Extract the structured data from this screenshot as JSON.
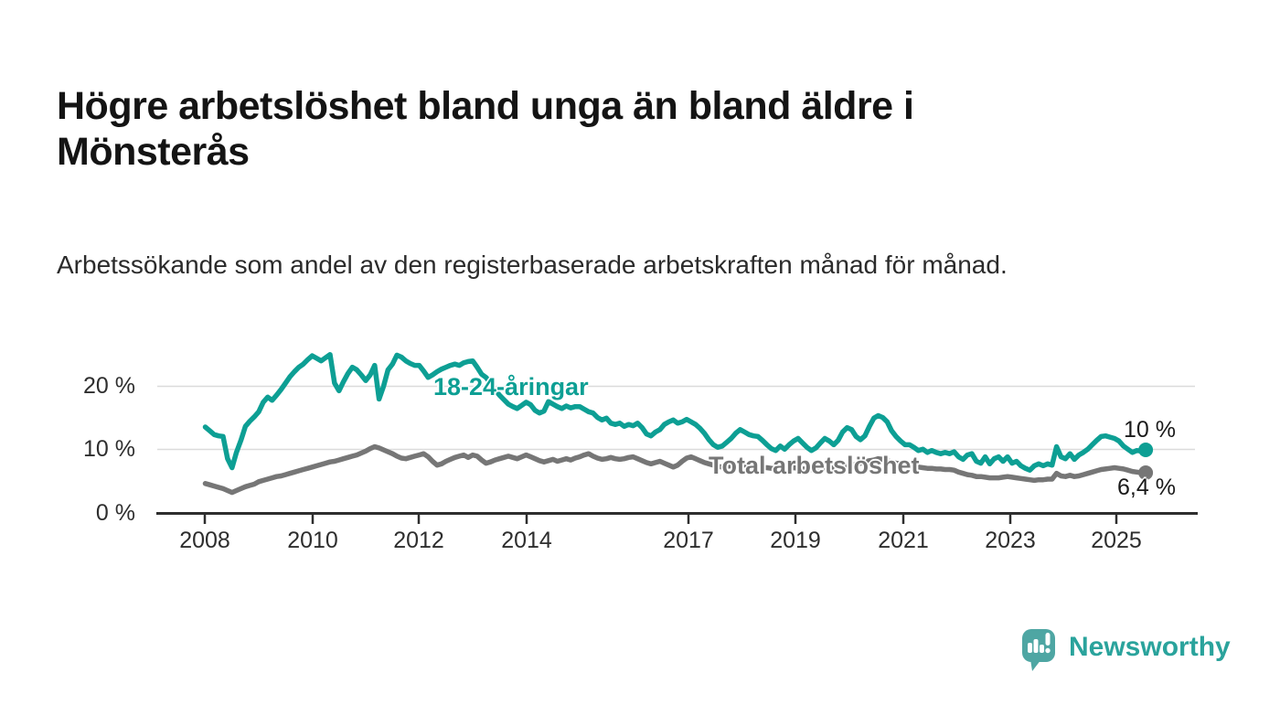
{
  "page": {
    "title": "Högre arbetslöshet bland unga än bland äldre i Mönsterås",
    "subtitle": "Arbetssökande som andel av den registerbaserade arbetskraften månad för månad."
  },
  "branding": {
    "logo_text": "Newsworthy",
    "logo_icon": "bar-chart-speech-bubble",
    "logo_icon_color": "#4ea6a3",
    "logo_text_color": "#2aa39c"
  },
  "chart_data": {
    "type": "line",
    "title": "Högre arbetslöshet bland unga än bland äldre i Mönsterås",
    "subtitle": "Arbetssökande som andel av den registerbaserade arbetskraften månad för månad.",
    "unit": "%",
    "grid": "horizontal",
    "x_interval": "monthly",
    "x_start_year": 2008,
    "x_end": "2025-08",
    "ylim": [
      0,
      27
    ],
    "yticks": [
      {
        "value": 20,
        "label": "20 %"
      },
      {
        "value": 10,
        "label": "10 %"
      },
      {
        "value": 0,
        "label": "0 %"
      }
    ],
    "xticks": [
      "2008",
      "2010",
      "2012",
      "2014",
      "2017",
      "2019",
      "2021",
      "2023",
      "2025"
    ],
    "series": [
      {
        "name": "18-24-åringar",
        "color": "#0d9f94",
        "end_label": "10 %",
        "last_value": 10.0,
        "values": [
          13.6,
          13.0,
          12.4,
          12.2,
          12.1,
          8.6,
          7.2,
          9.6,
          11.5,
          13.7,
          14.5,
          15.2,
          16.0,
          17.5,
          18.3,
          17.8,
          18.6,
          19.5,
          20.5,
          21.5,
          22.3,
          23.0,
          23.5,
          24.2,
          24.8,
          24.4,
          24.0,
          24.5,
          25.0,
          20.5,
          19.3,
          20.7,
          22.0,
          23.0,
          22.6,
          21.8,
          20.9,
          21.8,
          23.3,
          18.0,
          20.0,
          22.6,
          23.5,
          24.9,
          24.6,
          24.0,
          23.6,
          23.3,
          23.3,
          22.4,
          21.4,
          21.8,
          22.3,
          22.7,
          23.0,
          23.3,
          23.5,
          23.3,
          23.7,
          23.9,
          24.0,
          23.0,
          21.9,
          21.4,
          20.5,
          19.5,
          18.6,
          17.9,
          17.2,
          16.8,
          16.5,
          17.0,
          17.5,
          17.1,
          16.2,
          15.8,
          16.1,
          17.6,
          17.2,
          16.8,
          16.5,
          16.9,
          16.6,
          16.8,
          16.8,
          16.4,
          16.0,
          15.8,
          15.1,
          14.7,
          15.0,
          14.2,
          14.0,
          14.2,
          13.7,
          14.0,
          13.8,
          14.2,
          13.5,
          12.5,
          12.2,
          12.8,
          13.2,
          14.0,
          14.4,
          14.7,
          14.2,
          14.4,
          14.8,
          14.4,
          14.0,
          13.4,
          12.6,
          11.6,
          10.8,
          10.4,
          10.6,
          11.2,
          11.8,
          12.6,
          13.2,
          12.8,
          12.4,
          12.2,
          12.1,
          11.5,
          10.8,
          10.2,
          9.9,
          10.6,
          10.1,
          10.8,
          11.4,
          11.8,
          11.1,
          10.4,
          9.9,
          10.3,
          11.1,
          11.8,
          11.4,
          10.8,
          11.5,
          12.8,
          13.5,
          13.2,
          12.1,
          11.6,
          12.2,
          13.7,
          15.0,
          15.4,
          15.1,
          14.4,
          13.0,
          12.1,
          11.4,
          10.8,
          10.8,
          10.4,
          9.9,
          10.1,
          9.6,
          9.9,
          9.6,
          9.4,
          9.6,
          9.4,
          9.7,
          8.9,
          8.5,
          9.2,
          9.4,
          8.2,
          7.9,
          8.9,
          7.8,
          8.6,
          8.9,
          8.2,
          8.9,
          7.9,
          8.2,
          7.5,
          7.1,
          6.8,
          7.5,
          7.8,
          7.5,
          7.8,
          7.6,
          10.5,
          8.9,
          8.6,
          9.4,
          8.5,
          9.2,
          9.6,
          10.1,
          10.8,
          11.5,
          12.1,
          12.2,
          12.0,
          11.8,
          11.4,
          10.6,
          10.1,
          9.6,
          9.9,
          9.8,
          10.0
        ]
      },
      {
        "name": "Total arbetslöshet",
        "color": "#767676",
        "end_label": "6,4 %",
        "last_value": 6.4,
        "values": [
          4.7,
          4.5,
          4.3,
          4.1,
          3.9,
          3.6,
          3.3,
          3.6,
          3.9,
          4.2,
          4.4,
          4.6,
          5.0,
          5.2,
          5.4,
          5.6,
          5.8,
          5.9,
          6.1,
          6.3,
          6.5,
          6.7,
          6.9,
          7.1,
          7.3,
          7.5,
          7.7,
          7.9,
          8.1,
          8.2,
          8.4,
          8.6,
          8.8,
          9.0,
          9.2,
          9.5,
          9.8,
          10.2,
          10.5,
          10.3,
          10.0,
          9.7,
          9.4,
          9.0,
          8.7,
          8.6,
          8.8,
          9.0,
          9.2,
          9.4,
          8.9,
          8.2,
          7.6,
          7.8,
          8.2,
          8.5,
          8.8,
          9.0,
          9.2,
          8.8,
          9.2,
          9.0,
          8.4,
          7.9,
          8.1,
          8.4,
          8.6,
          8.8,
          9.0,
          8.8,
          8.6,
          8.9,
          9.2,
          8.9,
          8.6,
          8.3,
          8.1,
          8.3,
          8.5,
          8.2,
          8.4,
          8.6,
          8.4,
          8.7,
          8.9,
          9.2,
          9.4,
          9.0,
          8.7,
          8.5,
          8.6,
          8.8,
          8.6,
          8.5,
          8.6,
          8.8,
          8.9,
          8.6,
          8.3,
          8.0,
          7.8,
          8.0,
          8.2,
          7.9,
          7.6,
          7.3,
          7.6,
          8.2,
          8.7,
          8.9,
          8.6,
          8.3,
          8.0,
          7.8,
          7.6,
          7.4,
          7.3,
          7.4,
          7.5,
          7.6,
          7.7,
          7.6,
          7.5,
          7.4,
          7.3,
          7.2,
          7.2,
          7.1,
          7.0,
          7.0,
          7.0,
          7.0,
          7.2,
          7.1,
          7.0,
          7.0,
          6.9,
          7.0,
          7.0,
          7.1,
          7.1,
          7.2,
          7.3,
          7.4,
          7.5,
          7.6,
          7.7,
          7.9,
          8.1,
          8.3,
          8.4,
          8.6,
          8.5,
          8.3,
          8.1,
          7.9,
          7.8,
          7.7,
          7.5,
          7.4,
          7.3,
          7.2,
          7.1,
          7.1,
          7.0,
          7.0,
          6.9,
          6.9,
          6.8,
          6.5,
          6.3,
          6.1,
          6.0,
          5.8,
          5.8,
          5.7,
          5.6,
          5.6,
          5.6,
          5.7,
          5.8,
          5.7,
          5.6,
          5.5,
          5.4,
          5.3,
          5.2,
          5.3,
          5.3,
          5.4,
          5.4,
          6.3,
          5.9,
          5.8,
          6.0,
          5.8,
          5.9,
          6.1,
          6.3,
          6.5,
          6.7,
          6.9,
          7.0,
          7.1,
          7.2,
          7.1,
          7.0,
          6.8,
          6.6,
          6.5,
          6.4,
          6.4
        ]
      }
    ]
  }
}
